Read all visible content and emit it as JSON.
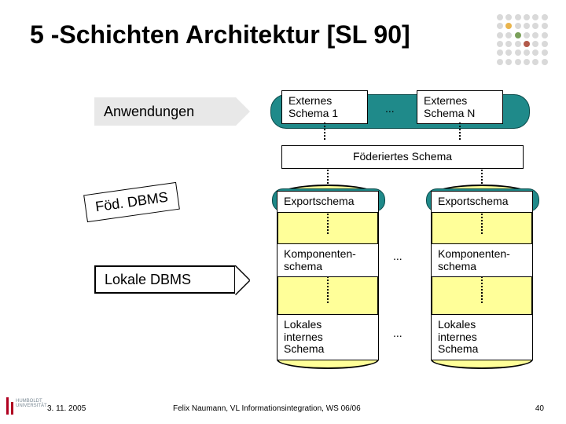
{
  "title": "5 -Schichten Architektur [SL 90]",
  "dotgrid_colors": [
    "#d9d9d9",
    "#d9d9d9",
    "#d9d9d9",
    "#d9d9d9",
    "#d9d9d9",
    "#d9d9d9",
    "#d9d9d9",
    "#e9b44c",
    "#d9d9d9",
    "#d9d9d9",
    "#d9d9d9",
    "#d9d9d9",
    "#d9d9d9",
    "#d9d9d9",
    "#7aa05a",
    "#d9d9d9",
    "#d9d9d9",
    "#d9d9d9",
    "#d9d9d9",
    "#d9d9d9",
    "#d9d9d9",
    "#b35a4a",
    "#d9d9d9",
    "#d9d9d9",
    "#d9d9d9",
    "#d9d9d9",
    "#d9d9d9",
    "#d9d9d9",
    "#d9d9d9",
    "#d9d9d9",
    "#d9d9d9",
    "#d9d9d9",
    "#d9d9d9",
    "#d9d9d9",
    "#d9d9d9",
    "#d9d9d9"
  ],
  "arrows": {
    "anwendungen": "Anwendungen",
    "foed_dbms": "Föd. DBMS",
    "lokale_dbms": "Lokale DBMS"
  },
  "boxes": {
    "ext1": "Externes\nSchema 1",
    "extN": "Externes\nSchema N",
    "federated": "Föderiertes Schema",
    "export1": "Exportschema",
    "export2": "Exportschema",
    "komp1": "Komponenten-\nschema",
    "komp2": "Komponenten-\nschema",
    "lokal1": "Lokales\ninternes\nSchema",
    "lokal2": "Lokales\ninternes\nSchema"
  },
  "ellipsis": "...",
  "footer": {
    "date": "3. 11. 2005",
    "mid": "Felix Naumann, VL Informationsintegration, WS 06/06",
    "page": "40"
  },
  "colors": {
    "teal": "#1f8a8a",
    "cyl": "#ffff99",
    "arrow_anw": "#e8e8e8",
    "arrow_foed": "#ffffff",
    "arrow_lokale": "#ffffff"
  }
}
